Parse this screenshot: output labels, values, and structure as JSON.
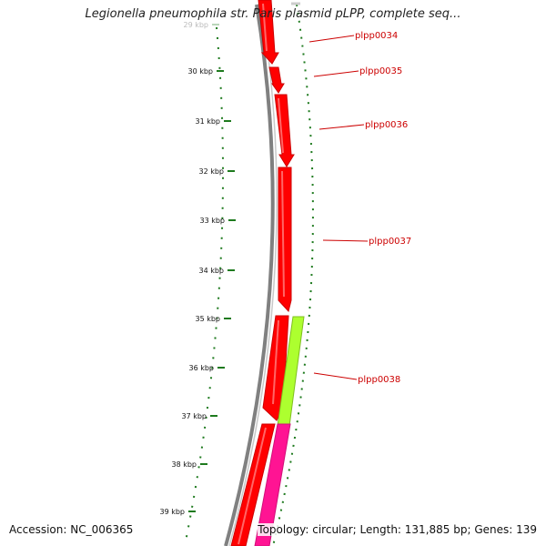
{
  "title": "Legionella pneumophila str. Paris plasmid pLPP, complete seq...",
  "footer": {
    "accession": "Accession: NC_006365",
    "summary": "Topology: circular; Length: 131,885 bp; Genes: 139"
  },
  "ruler": {
    "ticks": [
      {
        "label": "29 kbp",
        "faded": true
      },
      {
        "label": "30 kbp"
      },
      {
        "label": "31 kbp"
      },
      {
        "label": "32 kbp"
      },
      {
        "label": "33 kbp"
      },
      {
        "label": "34 kbp"
      },
      {
        "label": "35 kbp"
      },
      {
        "label": "36 kbp"
      },
      {
        "label": "37 kbp"
      },
      {
        "label": "38 kbp"
      },
      {
        "label": "39 kbp"
      }
    ]
  },
  "genes": [
    {
      "label": "plpp0034"
    },
    {
      "label": "plpp0035"
    },
    {
      "label": "plpp0036"
    },
    {
      "label": "plpp0037"
    },
    {
      "label": "plpp0038"
    }
  ],
  "colors": {
    "forward_gene": "#ff0000",
    "reverse_gene": "#adff2f",
    "other_feature": "#ff1493",
    "backbone": "#808080",
    "ruler": "#1e7a1e",
    "label": "#cc0000"
  }
}
